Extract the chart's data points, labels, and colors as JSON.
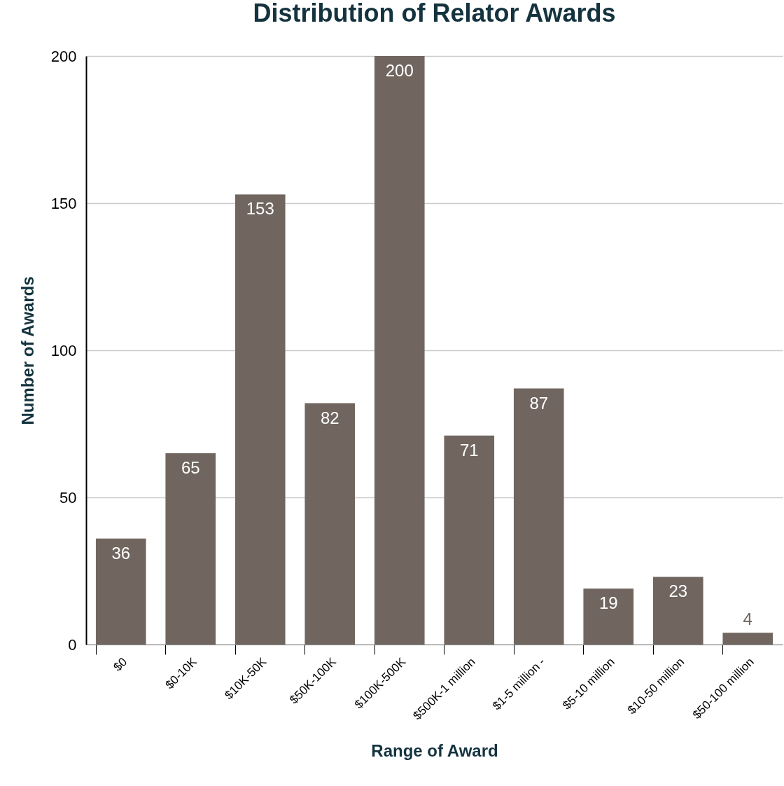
{
  "chart_data": {
    "type": "bar",
    "title": "Distribution of Relator Awards",
    "xlabel": "Range of Award",
    "ylabel": "Number of Awards",
    "categories": [
      "$0",
      "$0-10K",
      "$10K-50K",
      "$50K-100K",
      "$100K-500K",
      "$500K-1 million",
      "$1-5 million -",
      "$5-10 million",
      "$10-50 million",
      "$50-100 million"
    ],
    "values": [
      36,
      65,
      153,
      82,
      200,
      71,
      87,
      19,
      23,
      4
    ],
    "color": "#70665f",
    "ylim": [
      0,
      200
    ],
    "yticks": [
      0,
      50,
      100,
      150,
      200
    ],
    "grid": "y",
    "data_labels": true
  }
}
